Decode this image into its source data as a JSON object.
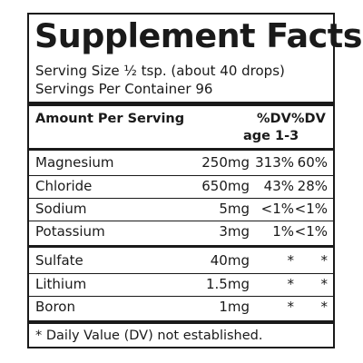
{
  "title": "Supplement Facts",
  "serving_size": "Serving Size ½ tsp. (about 40 drops)",
  "servings_per_container": "Servings Per Container 96",
  "header": {
    "amount_per_serving": "Amount Per Serving",
    "dv_child_line1": "%DV",
    "dv_child_line2": "age 1-3",
    "dv_adult": "%DV"
  },
  "rows": [
    {
      "name": "Magnesium",
      "amount": "250mg",
      "dv_child": "313%",
      "dv_adult": "60%"
    },
    {
      "name": "Chloride",
      "amount": "650mg",
      "dv_child": "43%",
      "dv_adult": "28%"
    },
    {
      "name": "Sodium",
      "amount": "5mg",
      "dv_child": "<1%",
      "dv_adult": "<1%"
    },
    {
      "name": "Potassium",
      "amount": "3mg",
      "dv_child": "1%",
      "dv_adult": "<1%"
    },
    {
      "name": "Sulfate",
      "amount": "40mg",
      "dv_child": "*",
      "dv_adult": "*"
    },
    {
      "name": "Lithium",
      "amount": "1.5mg",
      "dv_child": "*",
      "dv_adult": "*"
    },
    {
      "name": "Boron",
      "amount": "1mg",
      "dv_child": "*",
      "dv_adult": "*"
    }
  ],
  "footnote": "* Daily Value (DV) not established."
}
